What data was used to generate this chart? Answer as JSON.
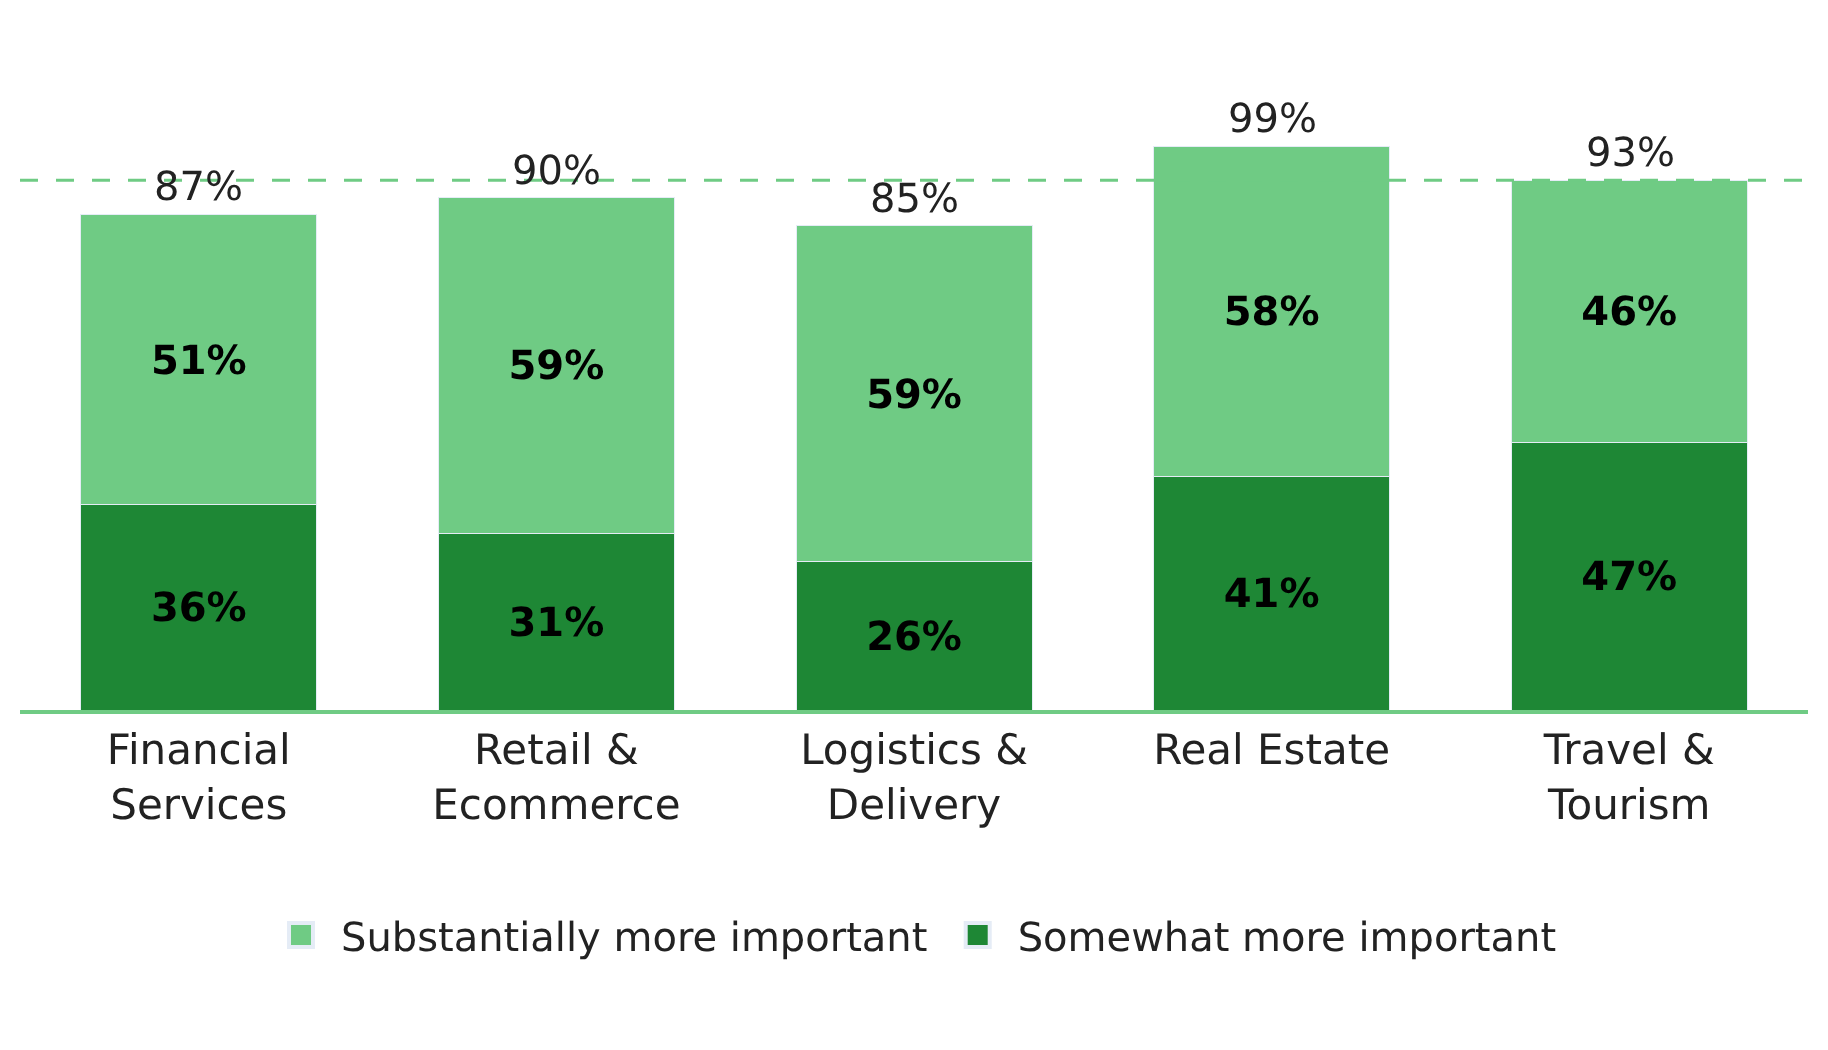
{
  "chart_data": {
    "type": "bar",
    "stacked": true,
    "categories": [
      "Financial Services",
      "Retail & Ecommerce",
      "Logistics & Delivery",
      "Real Estate",
      "Travel & Tourism"
    ],
    "series": [
      {
        "name": "Somewhat more important",
        "color": "#1e8735",
        "values": [
          36,
          31,
          26,
          41,
          47
        ],
        "value_labels": [
          "36%",
          "31%",
          "26%",
          "41%",
          "47%"
        ]
      },
      {
        "name": "Substantially more important",
        "color": "#6fcb84",
        "values": [
          51,
          59,
          59,
          58,
          46
        ],
        "value_labels": [
          "51%",
          "59%",
          "59%",
          "58%",
          "46%"
        ]
      }
    ],
    "totals": [
      "87%",
      "90%",
      "85%",
      "99%",
      "93%"
    ],
    "ref_lines": [
      {
        "axis": "y",
        "value": 93,
        "label": null,
        "color": "#6fcb84",
        "line_style": "dashed"
      }
    ],
    "legend": "bottom",
    "tick_labels": "x"
  }
}
